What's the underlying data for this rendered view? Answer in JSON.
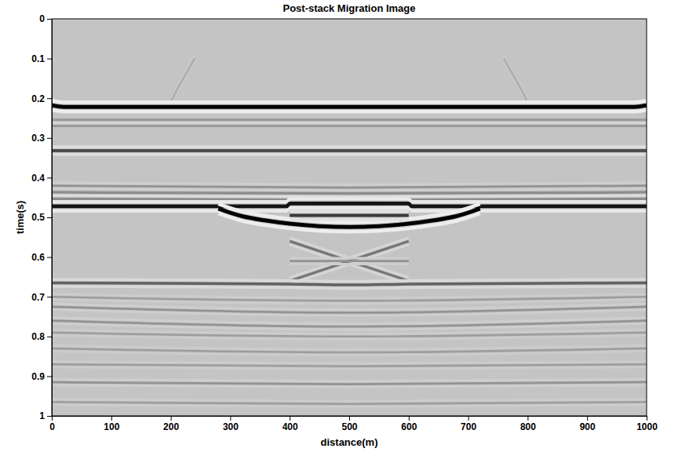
{
  "chart_data": {
    "type": "seismic",
    "title": "Post-stack Migration Image",
    "x_label": "distance(m)",
    "y_label": "time(s)",
    "xlim": [
      0,
      1000
    ],
    "xticks": [
      0,
      100,
      200,
      300,
      400,
      500,
      600,
      700,
      800,
      900,
      1000
    ],
    "ylim": [
      0,
      1
    ],
    "yticks": [
      0,
      0.1,
      0.2,
      0.3,
      0.4,
      0.5,
      0.6,
      0.7,
      0.8,
      0.9,
      1
    ],
    "events": [
      {
        "x": [
          240,
          225,
          210,
          200
        ],
        "values": [
          0.1,
          0.14,
          0.18,
          0.21
        ],
        "amplitude": 0.12
      },
      {
        "x": [
          760,
          775,
          790,
          800
        ],
        "values": [
          0.1,
          0.14,
          0.18,
          0.21
        ],
        "amplitude": 0.12
      },
      {
        "x": [
          0,
          20,
          980,
          1000
        ],
        "values": [
          0.218,
          0.222,
          0.222,
          0.218
        ],
        "amplitude": 1.0
      },
      {
        "x": [
          0,
          1000
        ],
        "values": [
          0.262,
          0.262
        ],
        "amplitude": -0.3
      },
      {
        "x": [
          0,
          1000
        ],
        "values": [
          0.332,
          0.332
        ],
        "amplitude": 0.6
      },
      {
        "x": [
          0,
          500,
          1000
        ],
        "values": [
          0.42,
          0.425,
          0.42
        ],
        "amplitude": 0.25
      },
      {
        "x": [
          0,
          500,
          1000
        ],
        "values": [
          0.445,
          0.448,
          0.445
        ],
        "amplitude": -0.4
      },
      {
        "x": [
          0,
          395,
          400,
          600,
          605,
          1000
        ],
        "values": [
          0.472,
          0.472,
          0.465,
          0.465,
          0.472,
          0.472
        ],
        "amplitude": 0.9
      },
      {
        "x": [
          280,
          320,
          360,
          400,
          450,
          500,
          550,
          600,
          640,
          680,
          720
        ],
        "values": [
          0.478,
          0.497,
          0.508,
          0.516,
          0.522,
          0.524,
          0.522,
          0.516,
          0.508,
          0.497,
          0.478
        ],
        "amplitude": 1.0
      },
      {
        "x": [
          400,
          600
        ],
        "values": [
          0.495,
          0.495
        ],
        "amplitude": 0.7
      },
      {
        "x": [
          400,
          600
        ],
        "values": [
          0.56,
          0.66
        ],
        "amplitude": 0.4
      },
      {
        "x": [
          400,
          600
        ],
        "values": [
          0.66,
          0.56
        ],
        "amplitude": 0.4
      },
      {
        "x": [
          400,
          600
        ],
        "values": [
          0.61,
          0.61
        ],
        "amplitude": 0.25
      },
      {
        "x": [
          0,
          400,
          500,
          600,
          1000
        ],
        "values": [
          0.665,
          0.668,
          0.67,
          0.668,
          0.665
        ],
        "amplitude": 0.5
      },
      {
        "x": [
          0,
          500,
          1000
        ],
        "values": [
          0.7,
          0.71,
          0.7
        ],
        "amplitude": 0.2
      },
      {
        "x": [
          0,
          500,
          1000
        ],
        "values": [
          0.725,
          0.74,
          0.725
        ],
        "amplitude": 0.25
      },
      {
        "x": [
          0,
          500,
          1000
        ],
        "values": [
          0.76,
          0.775,
          0.76
        ],
        "amplitude": 0.25
      },
      {
        "x": [
          0,
          500,
          1000
        ],
        "values": [
          0.79,
          0.8,
          0.79
        ],
        "amplitude": 0.2
      },
      {
        "x": [
          0,
          500,
          1000
        ],
        "values": [
          0.83,
          0.84,
          0.83
        ],
        "amplitude": 0.2
      },
      {
        "x": [
          0,
          500,
          1000
        ],
        "values": [
          0.87,
          0.875,
          0.87
        ],
        "amplitude": 0.2
      },
      {
        "x": [
          0,
          500,
          1000
        ],
        "values": [
          0.915,
          0.92,
          0.915
        ],
        "amplitude": 0.25
      },
      {
        "x": [
          0,
          500,
          1000
        ],
        "values": [
          0.965,
          0.97,
          0.965
        ],
        "amplitude": 0.2
      }
    ]
  }
}
